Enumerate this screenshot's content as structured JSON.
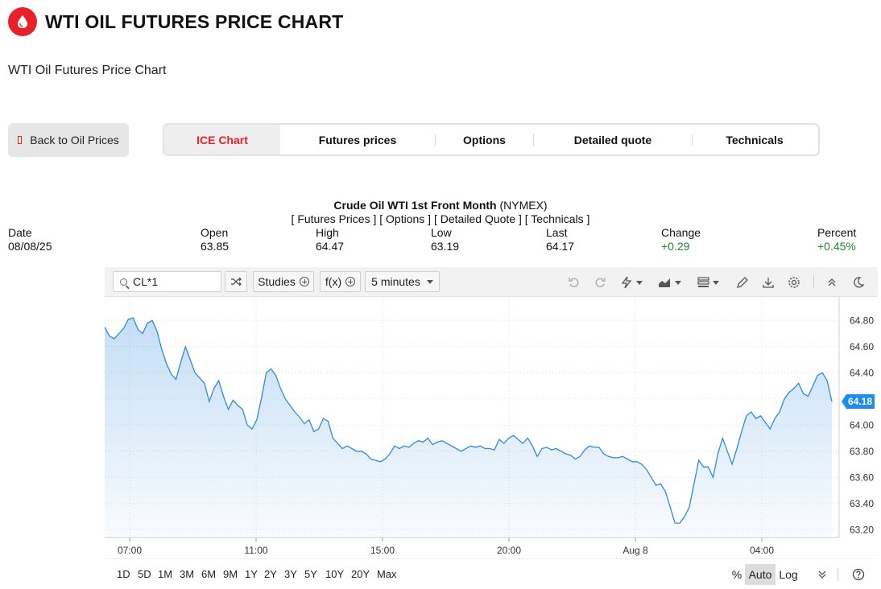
{
  "header": {
    "title": "WTI OIL FUTURES PRICE CHART",
    "subtitle": "WTI Oil Futures Price Chart"
  },
  "back_button": {
    "label": "Back to Oil Prices"
  },
  "tabs": [
    {
      "label": "ICE Chart",
      "active": true
    },
    {
      "label": "Futures prices",
      "active": false
    },
    {
      "label": "Options",
      "active": false
    },
    {
      "label": "Detailed quote",
      "active": false
    },
    {
      "label": "Technicals",
      "active": false
    }
  ],
  "quote": {
    "name": "Crude Oil WTI 1st Front Month",
    "exchange": "(NYMEX)",
    "links": "[ Futures Prices ] [ Options ] [ Detailed Quote ] [ Technicals ]",
    "columns": [
      {
        "label": "Date",
        "value": "08/08/25",
        "color": ""
      },
      {
        "label": "Open",
        "value": "63.85",
        "color": ""
      },
      {
        "label": "High",
        "value": "64.47",
        "color": ""
      },
      {
        "label": "Low",
        "value": "63.19",
        "color": ""
      },
      {
        "label": "Last",
        "value": "64.17",
        "color": ""
      },
      {
        "label": "Change",
        "value": "+0.29",
        "color": "#1a8a2e"
      },
      {
        "label": "Percent",
        "value": "+0.45%",
        "color": "#1a8a2e"
      }
    ]
  },
  "toolbar": {
    "symbol": "CL*1",
    "studies_label": "Studies",
    "fx_label": "f(x)",
    "interval_label": "5 minutes",
    "icons": [
      "undo-icon",
      "redo-icon",
      "lightning-icon",
      "chart-type-icon",
      "layout-icon",
      "pencil-icon",
      "download-icon",
      "gear-icon",
      "collapse-icon",
      "moon-icon"
    ]
  },
  "chart_data": {
    "type": "area",
    "series": [
      {
        "values": [
          64.75,
          64.68,
          64.66,
          64.7,
          64.74,
          64.81,
          64.82,
          64.73,
          64.7,
          64.78,
          64.8,
          64.72,
          64.58,
          64.47,
          64.39,
          64.35,
          64.48,
          64.6,
          64.5,
          64.4,
          64.36,
          64.32,
          64.18,
          64.28,
          64.34,
          64.22,
          64.12,
          64.19,
          64.15,
          64.12,
          64.0,
          63.97,
          64.04,
          64.21,
          64.4,
          64.43,
          64.38,
          64.28,
          64.2,
          64.15,
          64.1,
          64.06,
          64.01,
          64.04,
          63.95,
          63.97,
          64.05,
          64.03,
          63.9,
          63.86,
          63.82,
          63.84,
          63.82,
          63.8,
          63.8,
          63.78,
          63.74,
          63.73,
          63.72,
          63.74,
          63.78,
          63.84,
          63.82,
          63.84,
          63.83,
          63.86,
          63.88,
          63.87,
          63.9,
          63.85,
          63.87,
          63.88,
          63.86,
          63.84,
          63.82,
          63.8,
          63.82,
          63.84,
          63.83,
          63.84,
          63.82,
          63.82,
          63.81,
          63.89,
          63.86,
          63.9,
          63.92,
          63.89,
          63.86,
          63.9,
          63.84,
          63.76,
          63.82,
          63.83,
          63.81,
          63.82,
          63.8,
          63.78,
          63.77,
          63.74,
          63.76,
          63.81,
          63.84,
          63.83,
          63.83,
          63.78,
          63.76,
          63.75,
          63.75,
          63.76,
          63.74,
          63.72,
          63.72,
          63.7,
          63.66,
          63.6,
          63.54,
          63.55,
          63.49,
          63.37,
          63.25,
          63.25,
          63.3,
          63.37,
          63.55,
          63.73,
          63.68,
          63.68,
          63.6,
          63.78,
          63.9,
          63.8,
          63.7,
          63.82,
          63.95,
          64.07,
          64.1,
          64.05,
          64.07,
          64.02,
          63.97,
          64.05,
          64.1,
          64.2,
          64.25,
          64.28,
          64.32,
          64.24,
          64.22,
          64.3,
          64.38,
          64.4,
          64.34,
          64.18
        ]
      }
    ],
    "ylim": [
      63.14,
      64.98
    ],
    "yticks": [
      "64.80",
      "64.60",
      "64.40",
      "64.20",
      "64.00",
      "63.80",
      "63.60",
      "63.40",
      "63.20"
    ],
    "xticks": [
      "07:00",
      "11:00",
      "15:00",
      "20:00",
      "Aug 8",
      "04:00"
    ],
    "last_label": "64.18",
    "grid": true
  },
  "ranges": [
    "1D",
    "5D",
    "1M",
    "3M",
    "6M",
    "9M",
    "1Y",
    "2Y",
    "3Y",
    "5Y",
    "10Y",
    "20Y",
    "Max"
  ],
  "scale_buttons": [
    {
      "label": "%",
      "active": false
    },
    {
      "label": "Auto",
      "active": true
    },
    {
      "label": "Log",
      "active": false
    }
  ],
  "colors": {
    "accent": "#e8202a",
    "line": "#2e8ae0",
    "positive": "#1a8a2e",
    "last_tag": "#1f8ceb"
  }
}
